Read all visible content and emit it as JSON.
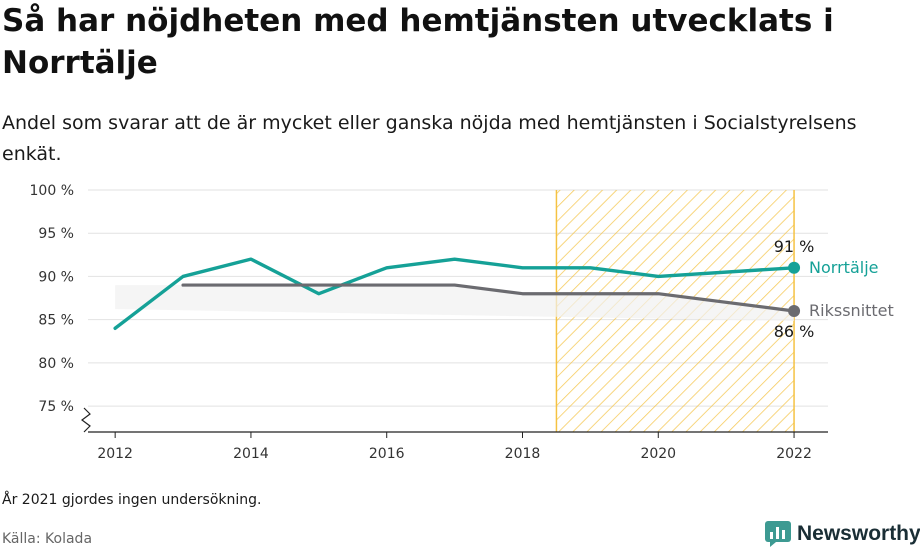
{
  "title": "Så har nöjdheten med hemtjänsten utvecklats i Norrtälje",
  "subtitle": "Andel som svarar att de är mycket eller ganska nöjda med hemtjänsten i Socialstyrelsens enkät.",
  "note": "År 2021 gjordes ingen undersökning.",
  "source": "Källa: Kolada",
  "brand": {
    "name": "Newsworthy",
    "icon": "bar-chart-speech-icon"
  },
  "chart_data": {
    "type": "line",
    "ylim": [
      72,
      100
    ],
    "yticks": [
      75,
      80,
      85,
      90,
      95,
      100
    ],
    "ytick_labels": [
      "75 %",
      "80 %",
      "85 %",
      "90 %",
      "95 %",
      "100 %"
    ],
    "xlim": [
      2011.6,
      2022.5
    ],
    "xticks": [
      2012,
      2014,
      2016,
      2018,
      2020,
      2022
    ],
    "xtick_labels": [
      "2012",
      "2014",
      "2016",
      "2018",
      "2020",
      "2022"
    ],
    "axis_break": true,
    "grid": true,
    "highlight_range": [
      2018.5,
      2022
    ],
    "highlight_color": "#f5c242",
    "series": [
      {
        "name": "Norrtälje",
        "color": "#15a197",
        "x": [
          2012,
          2013,
          2014,
          2015,
          2016,
          2017,
          2018,
          2019,
          2020,
          2022
        ],
        "y": [
          84,
          90,
          92,
          88,
          91,
          92,
          91,
          91,
          90,
          91
        ],
        "end_label": "91 %"
      },
      {
        "name": "Rikssnittet",
        "color": "#6b6b70",
        "x": [
          2013,
          2014,
          2015,
          2016,
          2017,
          2018,
          2019,
          2020,
          2022
        ],
        "y": [
          89,
          89,
          89,
          89,
          89,
          88,
          88,
          88,
          86
        ],
        "end_label": "86 %"
      }
    ]
  }
}
